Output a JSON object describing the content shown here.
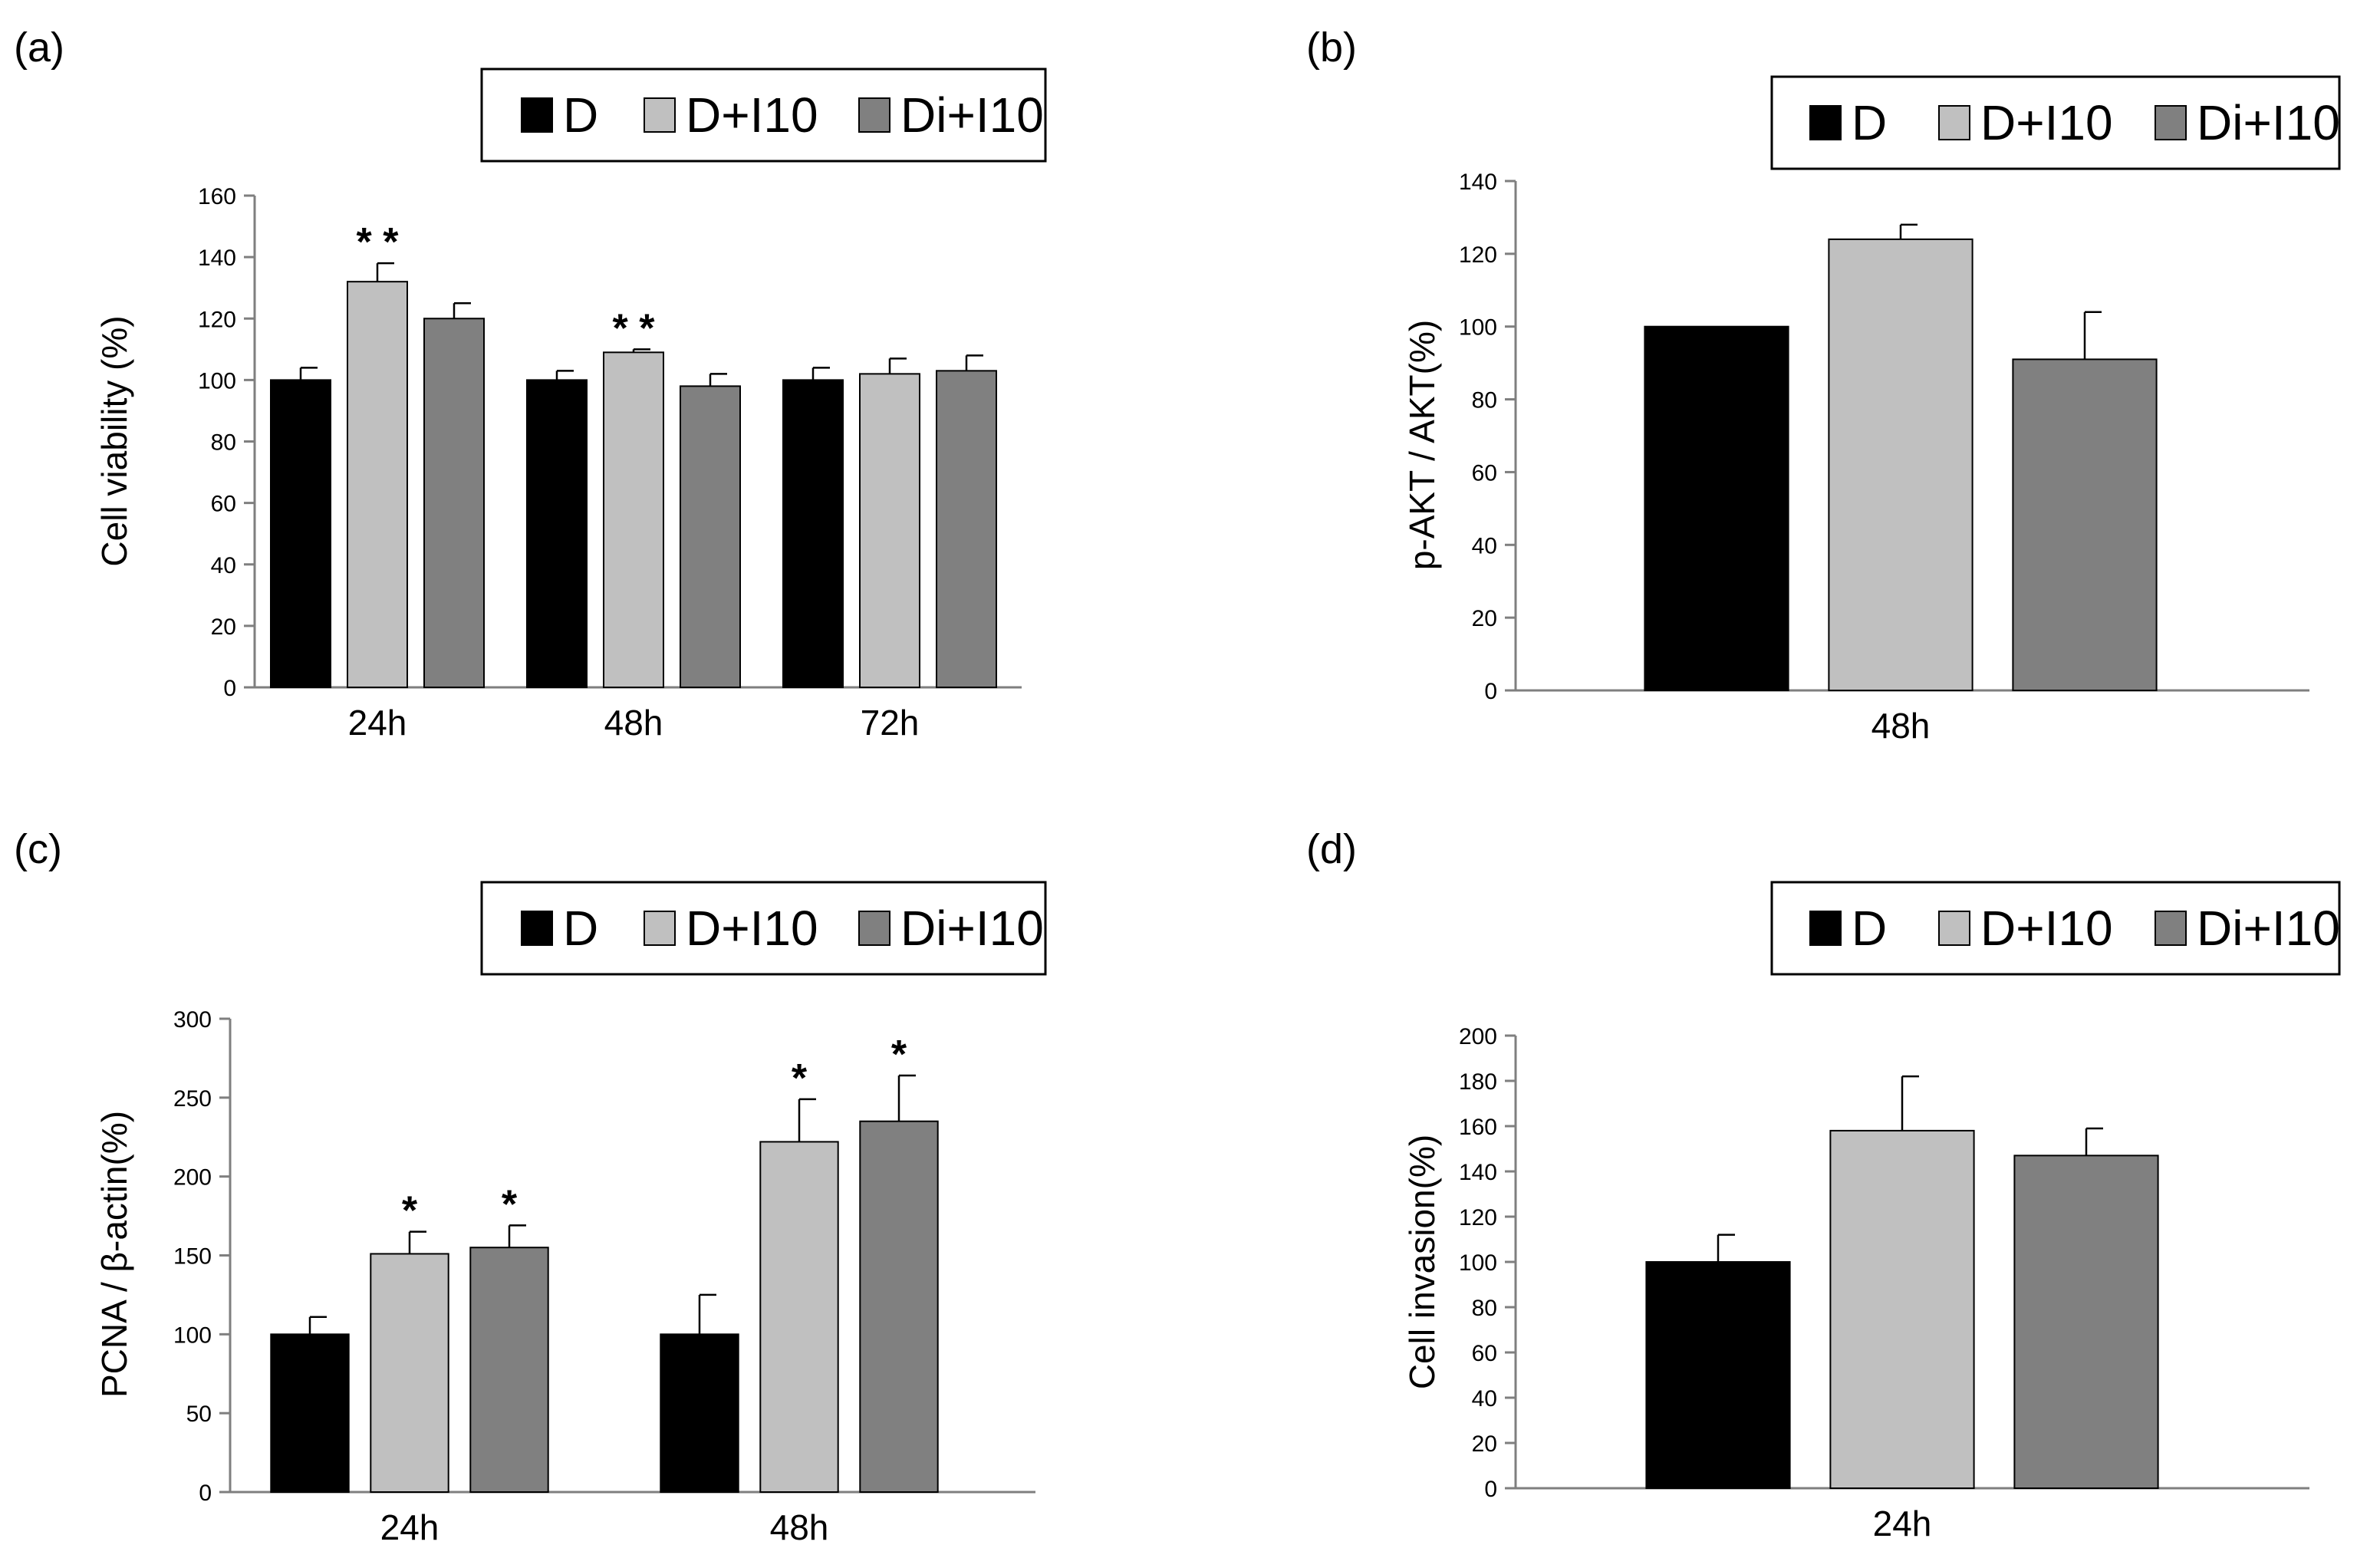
{
  "colors": {
    "D": "#000000",
    "D+I10": "#c0c0c0",
    "Di+I10": "#808080",
    "axis": "#7f7f7f",
    "errorbar": "#000000"
  },
  "legend_entries": [
    "D",
    "D+I10",
    "Di+I10"
  ],
  "chart_data": [
    {
      "panel": "(a)",
      "type": "bar",
      "title": "",
      "ylabel": "Cell viability (%)",
      "xlabel": "",
      "ylim": [
        0,
        160
      ],
      "ytick_step": 20,
      "categories": [
        "24h",
        "48h",
        "72h"
      ],
      "series": [
        {
          "name": "D",
          "values": [
            100,
            100,
            100
          ],
          "errors": [
            4,
            3,
            4
          ]
        },
        {
          "name": "D+I10",
          "values": [
            132,
            109,
            102
          ],
          "errors": [
            6,
            1,
            5
          ]
        },
        {
          "name": "Di+I10",
          "values": [
            120,
            98,
            103
          ],
          "errors": [
            5,
            4,
            5
          ]
        }
      ],
      "annotations": [
        {
          "category": 0,
          "series": 1,
          "text": "* *"
        },
        {
          "category": 1,
          "series": 1,
          "text": "* *"
        }
      ],
      "legend": "top-right"
    },
    {
      "panel": "(b)",
      "type": "bar",
      "title": "",
      "ylabel": "p-AKT / AKT(%)",
      "xlabel": "",
      "ylim": [
        0,
        140
      ],
      "ytick_step": 20,
      "categories": [
        "48h"
      ],
      "series": [
        {
          "name": "D",
          "values": [
            100
          ],
          "errors": [
            0
          ]
        },
        {
          "name": "D+I10",
          "values": [
            124
          ],
          "errors": [
            4
          ]
        },
        {
          "name": "Di+I10",
          "values": [
            91
          ],
          "errors": [
            13
          ]
        }
      ],
      "annotations": [],
      "legend": "top-right"
    },
    {
      "panel": "(c)",
      "type": "bar",
      "title": "",
      "ylabel": "PCNA / β-actin(%)",
      "xlabel": "",
      "ylim": [
        0,
        300
      ],
      "ytick_step": 50,
      "categories": [
        "24h",
        "48h"
      ],
      "series": [
        {
          "name": "D",
          "values": [
            100,
            100
          ],
          "errors": [
            11,
            25
          ]
        },
        {
          "name": "D+I10",
          "values": [
            151,
            222
          ],
          "errors": [
            14,
            27
          ]
        },
        {
          "name": "Di+I10",
          "values": [
            155,
            235
          ],
          "errors": [
            14,
            29
          ]
        }
      ],
      "annotations": [
        {
          "category": 0,
          "series": 1,
          "text": "*"
        },
        {
          "category": 0,
          "series": 2,
          "text": "*"
        },
        {
          "category": 1,
          "series": 1,
          "text": "*"
        },
        {
          "category": 1,
          "series": 2,
          "text": "*"
        }
      ],
      "legend": "top-right"
    },
    {
      "panel": "(d)",
      "type": "bar",
      "title": "",
      "ylabel": "Cell invasion(%)",
      "xlabel": "",
      "ylim": [
        0,
        200
      ],
      "ytick_step": 20,
      "categories": [
        "24h"
      ],
      "series": [
        {
          "name": "D",
          "values": [
            100
          ],
          "errors": [
            12
          ]
        },
        {
          "name": "D+I10",
          "values": [
            158
          ],
          "errors": [
            24
          ]
        },
        {
          "name": "Di+I10",
          "values": [
            147
          ],
          "errors": [
            12
          ]
        }
      ],
      "annotations": [],
      "legend": "top-right"
    }
  ]
}
